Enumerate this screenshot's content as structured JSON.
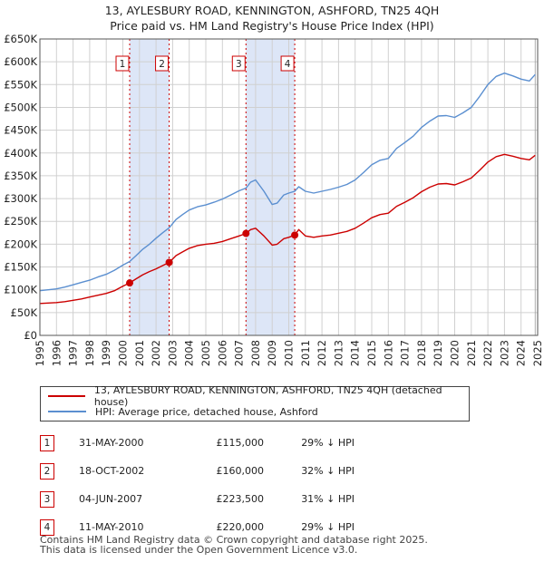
{
  "title_line1": "13, AYLESBURY ROAD, KENNINGTON, ASHFORD, TN25 4QH",
  "title_line2": "Price paid vs. HM Land Registry's House Price Index (HPI)",
  "colors": {
    "property": "#cc0000",
    "hpi": "#5b8fd0",
    "shade": "#dde6f7",
    "grid": "#d0d0d0"
  },
  "chart_data": {
    "type": "line",
    "xlim": [
      1995,
      2025
    ],
    "ylim": [
      0,
      650000
    ],
    "x_ticks": [
      1995,
      1996,
      1997,
      1998,
      1999,
      2000,
      2001,
      2002,
      2003,
      2004,
      2005,
      2006,
      2007,
      2008,
      2009,
      2010,
      2011,
      2012,
      2013,
      2014,
      2015,
      2016,
      2017,
      2018,
      2019,
      2020,
      2021,
      2022,
      2023,
      2024,
      2025
    ],
    "y_ticks": [
      0,
      50000,
      100000,
      150000,
      200000,
      250000,
      300000,
      350000,
      400000,
      450000,
      500000,
      550000,
      600000,
      650000
    ],
    "y_tick_labels": [
      "£0",
      "£50K",
      "£100K",
      "£150K",
      "£200K",
      "£250K",
      "£300K",
      "£350K",
      "£400K",
      "£450K",
      "£500K",
      "£550K",
      "£600K",
      "£650K"
    ],
    "shaded_ranges": [
      [
        2000.41,
        2002.79
      ],
      [
        2007.42,
        2010.36
      ]
    ],
    "series": [
      {
        "name": "13, AYLESBURY ROAD, KENNINGTON, ASHFORD, TN25 4QH (detached house)",
        "color": "#cc0000",
        "x": [
          1995.0,
          1995.5,
          1996.0,
          1996.5,
          1997.0,
          1997.5,
          1998.0,
          1998.5,
          1999.0,
          1999.5,
          2000.0,
          2000.41,
          2000.8,
          2001.2,
          2001.6,
          2002.0,
          2002.4,
          2002.79,
          2003.2,
          2003.6,
          2004.0,
          2004.5,
          2005.0,
          2005.5,
          2006.0,
          2006.5,
          2007.0,
          2007.42,
          2007.7,
          2008.0,
          2008.5,
          2009.0,
          2009.3,
          2009.7,
          2010.0,
          2010.36,
          2010.6,
          2011.0,
          2011.5,
          2012.0,
          2012.5,
          2013.0,
          2013.5,
          2014.0,
          2014.5,
          2015.0,
          2015.5,
          2016.0,
          2016.5,
          2017.0,
          2017.5,
          2018.0,
          2018.5,
          2019.0,
          2019.5,
          2020.0,
          2020.5,
          2021.0,
          2021.5,
          2022.0,
          2022.5,
          2023.0,
          2023.5,
          2024.0,
          2024.5,
          2024.85
        ],
        "values": [
          70000,
          71000,
          72000,
          74000,
          77000,
          80000,
          84000,
          88000,
          92000,
          98000,
          108000,
          115000,
          124000,
          133000,
          140000,
          146000,
          153000,
          160000,
          175000,
          183000,
          191000,
          197000,
          200000,
          202000,
          206000,
          212000,
          218000,
          223500,
          232000,
          235000,
          218000,
          198000,
          200000,
          212000,
          215000,
          220000,
          232000,
          218000,
          215000,
          218000,
          220000,
          224000,
          228000,
          235000,
          246000,
          258000,
          265000,
          268000,
          283000,
          292000,
          302000,
          315000,
          325000,
          332000,
          333000,
          330000,
          337000,
          345000,
          362000,
          380000,
          392000,
          397000,
          393000,
          388000,
          385000,
          395000
        ]
      },
      {
        "name": "HPI: Average price, detached house, Ashford",
        "color": "#5b8fd0",
        "x": [
          1995.0,
          1995.5,
          1996.0,
          1996.5,
          1997.0,
          1997.5,
          1998.0,
          1998.5,
          1999.0,
          1999.5,
          2000.0,
          2000.41,
          2000.8,
          2001.2,
          2001.6,
          2002.0,
          2002.4,
          2002.79,
          2003.2,
          2003.6,
          2004.0,
          2004.5,
          2005.0,
          2005.5,
          2006.0,
          2006.5,
          2007.0,
          2007.42,
          2007.7,
          2008.0,
          2008.5,
          2009.0,
          2009.3,
          2009.7,
          2010.0,
          2010.36,
          2010.6,
          2011.0,
          2011.5,
          2012.0,
          2012.5,
          2013.0,
          2013.5,
          2014.0,
          2014.5,
          2015.0,
          2015.5,
          2016.0,
          2016.5,
          2017.0,
          2017.5,
          2018.0,
          2018.5,
          2019.0,
          2019.5,
          2020.0,
          2020.5,
          2021.0,
          2021.5,
          2022.0,
          2022.5,
          2023.0,
          2023.5,
          2024.0,
          2024.5,
          2024.85
        ],
        "values": [
          98000,
          100000,
          102000,
          106000,
          111000,
          116000,
          121000,
          128000,
          134000,
          143000,
          154000,
          162000,
          175000,
          189000,
          200000,
          213000,
          225000,
          236000,
          254000,
          265000,
          275000,
          282000,
          286000,
          292000,
          299000,
          308000,
          317000,
          323000,
          336000,
          341000,
          316000,
          287000,
          290000,
          308000,
          312000,
          316000,
          326000,
          316000,
          312000,
          316000,
          320000,
          325000,
          331000,
          341000,
          357000,
          374000,
          384000,
          388000,
          410000,
          423000,
          437000,
          456000,
          470000,
          481000,
          482000,
          478000,
          488000,
          500000,
          524000,
          550000,
          568000,
          575000,
          569000,
          562000,
          558000,
          572000
        ]
      }
    ],
    "transactions": [
      {
        "label": "1",
        "x": 2000.41,
        "y": 115000
      },
      {
        "label": "2",
        "x": 2002.79,
        "y": 160000
      },
      {
        "label": "3",
        "x": 2007.42,
        "y": 223500
      },
      {
        "label": "4",
        "x": 2010.36,
        "y": 220000
      }
    ]
  },
  "legend": {
    "property": "13, AYLESBURY ROAD, KENNINGTON, ASHFORD, TN25 4QH (detached house)",
    "hpi": "HPI: Average price, detached house, Ashford"
  },
  "rows": [
    {
      "num": "1",
      "date": "31-MAY-2000",
      "price": "£115,000",
      "pct": "29% ↓ HPI"
    },
    {
      "num": "2",
      "date": "18-OCT-2002",
      "price": "£160,000",
      "pct": "32% ↓ HPI"
    },
    {
      "num": "3",
      "date": "04-JUN-2007",
      "price": "£223,500",
      "pct": "31% ↓ HPI"
    },
    {
      "num": "4",
      "date": "11-MAY-2010",
      "price": "£220,000",
      "pct": "29% ↓ HPI"
    }
  ],
  "footer_line1": "Contains HM Land Registry data © Crown copyright and database right 2025.",
  "footer_line2": "This data is licensed under the Open Government Licence v3.0."
}
